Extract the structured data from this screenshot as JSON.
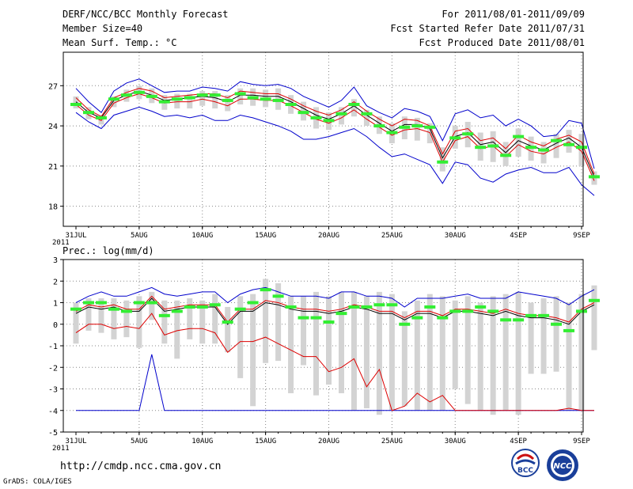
{
  "header": {
    "title": "DERF/NCC/BCC Monthly Forecast",
    "member_size": "Member Size=40",
    "variable": "Mean Surf. Temp.: °C",
    "period": "For 2011/08/01-2011/09/09",
    "fcst_started": "Fcst Started Refer Date 2011/07/31",
    "fcst_produced": "Fcst Produced Date 2011/08/01"
  },
  "footer": {
    "url": "http://cmdp.ncc.cma.gov.cn",
    "grads_credit": "GrADS: COLA/IGES",
    "logo_bcc": "BCC",
    "logo_ncc": "NCC"
  },
  "colors": {
    "spread_box": "#d3d3d3",
    "obs_bar": "#33ee33",
    "max_min_line": "#0000cc",
    "mean_line": "#000000",
    "lower_line": "#dd0000",
    "upper_red_line": "#dd0000"
  },
  "chart_data": [
    {
      "type": "line",
      "title": "Mean Surf. Temp.: °C",
      "x_tick_labels": [
        "31JUL",
        "5AUG",
        "10AUG",
        "15AUG",
        "20AUG",
        "25AUG",
        "30AUG",
        "4SEP",
        "9SEP"
      ],
      "x_tick_days": [
        0,
        5,
        10,
        15,
        20,
        25,
        30,
        35,
        40
      ],
      "year_label": "2011",
      "y_tick_labels": [
        "18",
        "21",
        "24",
        "27"
      ],
      "ylim": [
        16.5,
        29.5
      ],
      "grid": true,
      "series": [
        {
          "name": "max",
          "values": [
            26.8,
            25.8,
            25.0,
            26.6,
            27.2,
            27.5,
            27.0,
            26.5,
            26.6,
            26.6,
            26.9,
            26.8,
            26.6,
            27.3,
            27.1,
            27.0,
            27.1,
            26.8,
            26.2,
            25.8,
            25.4,
            25.9,
            26.9,
            25.5,
            25.0,
            24.6,
            25.3,
            25.1,
            24.7,
            22.9,
            24.9,
            25.2,
            24.6,
            24.8,
            24.0,
            24.5,
            24.0,
            23.2,
            23.3,
            24.4,
            24.2,
            20.8
          ]
        },
        {
          "name": "mean",
          "values": [
            25.8,
            25.0,
            24.6,
            25.9,
            26.3,
            26.6,
            26.3,
            25.9,
            26.0,
            26.1,
            26.2,
            26.1,
            25.8,
            26.3,
            26.3,
            26.2,
            26.2,
            25.8,
            25.3,
            24.8,
            24.5,
            24.9,
            25.5,
            24.8,
            24.2,
            23.6,
            24.1,
            24.1,
            23.8,
            21.6,
            23.2,
            23.5,
            22.6,
            22.8,
            22.0,
            22.9,
            22.5,
            22.2,
            22.7,
            23.1,
            22.4,
            20.2
          ]
        },
        {
          "name": "min",
          "values": [
            25.0,
            24.3,
            23.8,
            24.8,
            25.1,
            25.4,
            25.1,
            24.7,
            24.8,
            24.6,
            24.8,
            24.4,
            24.4,
            24.8,
            24.6,
            24.3,
            24.0,
            23.6,
            23.0,
            23.0,
            23.2,
            23.5,
            23.8,
            23.2,
            22.4,
            21.7,
            21.9,
            21.5,
            21.1,
            19.7,
            21.3,
            21.1,
            20.1,
            19.8,
            20.4,
            20.7,
            20.9,
            20.5,
            20.5,
            20.9,
            19.6,
            18.8
          ]
        },
        {
          "name": "upper",
          "values": [
            26.1,
            25.2,
            24.7,
            26.1,
            26.5,
            26.8,
            26.6,
            26.1,
            26.2,
            26.3,
            26.4,
            26.4,
            26.1,
            26.6,
            26.5,
            26.4,
            26.4,
            26.0,
            25.5,
            25.1,
            24.8,
            25.2,
            25.8,
            25.1,
            24.5,
            24.0,
            24.5,
            24.4,
            24.0,
            21.9,
            23.6,
            23.8,
            22.9,
            23.1,
            22.3,
            23.3,
            22.8,
            22.5,
            23.0,
            23.3,
            22.8,
            20.4
          ]
        },
        {
          "name": "lower",
          "values": [
            25.6,
            24.8,
            24.4,
            25.7,
            26.1,
            26.4,
            26.1,
            25.7,
            25.8,
            25.8,
            26.0,
            25.8,
            25.5,
            26.0,
            26.0,
            25.9,
            25.9,
            25.5,
            25.0,
            24.5,
            24.2,
            24.6,
            25.2,
            24.5,
            23.9,
            23.3,
            23.7,
            23.8,
            23.5,
            21.3,
            22.9,
            23.2,
            22.3,
            22.5,
            21.7,
            22.6,
            22.1,
            21.9,
            22.4,
            22.8,
            22.1,
            19.9
          ]
        },
        {
          "name": "box_top",
          "values": [
            26.2,
            25.4,
            24.8,
            26.2,
            26.7,
            27.0,
            26.8,
            26.3,
            26.4,
            26.4,
            26.6,
            26.6,
            26.3,
            26.8,
            26.8,
            26.7,
            26.8,
            26.3,
            25.8,
            25.4,
            25.0,
            25.4,
            26.0,
            25.2,
            24.7,
            24.2,
            24.7,
            24.6,
            24.2,
            22.4,
            24.0,
            24.3,
            23.5,
            23.6,
            22.8,
            23.8,
            23.2,
            22.8,
            23.4,
            23.7,
            23.4,
            20.6
          ]
        },
        {
          "name": "box_bottom",
          "values": [
            25.3,
            24.5,
            24.1,
            25.4,
            25.8,
            26.0,
            25.7,
            25.2,
            25.3,
            25.3,
            25.5,
            25.3,
            25.1,
            25.6,
            25.5,
            25.4,
            25.2,
            24.9,
            24.4,
            23.8,
            23.7,
            24.1,
            24.7,
            24.0,
            23.4,
            22.7,
            23.0,
            22.9,
            22.7,
            20.6,
            22.3,
            22.4,
            21.4,
            21.3,
            21.0,
            21.7,
            21.4,
            21.2,
            21.6,
            22.0,
            21.0,
            19.6
          ]
        },
        {
          "name": "observed",
          "values": [
            25.6,
            25.0,
            24.6,
            26.0,
            26.3,
            26.5,
            26.2,
            25.8,
            26.0,
            26.1,
            26.3,
            26.3,
            25.9,
            26.4,
            26.1,
            26.0,
            25.9,
            25.6,
            25.0,
            24.6,
            24.4,
            24.9,
            25.6,
            24.9,
            24.0,
            23.5,
            23.9,
            24.0,
            23.9,
            21.3,
            23.1,
            23.4,
            22.4,
            22.5,
            21.8,
            23.2,
            22.4,
            22.2,
            22.9,
            22.6,
            22.4,
            20.2
          ]
        }
      ]
    },
    {
      "type": "line",
      "title": "Prec.: log(mm/d)",
      "x_tick_labels": [
        "31JUL",
        "5AUG",
        "10AUG",
        "15AUG",
        "20AUG",
        "25AUG",
        "30AUG",
        "4SEP",
        "9SEP"
      ],
      "x_tick_days": [
        0,
        5,
        10,
        15,
        20,
        25,
        30,
        35,
        40
      ],
      "year_label": "2011",
      "y_tick_labels": [
        "-5",
        "-4",
        "-3",
        "-2",
        "-1",
        "0",
        "1",
        "2",
        "3"
      ],
      "ylim": [
        -5,
        3
      ],
      "grid": true,
      "series": [
        {
          "name": "max",
          "values": [
            1.0,
            1.3,
            1.5,
            1.3,
            1.3,
            1.5,
            1.7,
            1.4,
            1.3,
            1.4,
            1.5,
            1.5,
            1.0,
            1.4,
            1.6,
            1.7,
            1.5,
            1.3,
            1.3,
            1.3,
            1.2,
            1.5,
            1.5,
            1.3,
            1.3,
            1.2,
            0.8,
            1.2,
            1.2,
            1.2,
            1.3,
            1.4,
            1.2,
            1.2,
            1.2,
            1.5,
            1.4,
            1.3,
            1.2,
            0.9,
            1.3,
            1.6
          ]
        },
        {
          "name": "mean",
          "values": [
            0.5,
            0.8,
            0.7,
            0.8,
            0.6,
            0.6,
            1.2,
            0.6,
            0.7,
            0.8,
            0.8,
            0.8,
            0.0,
            0.6,
            0.6,
            1.0,
            0.9,
            0.7,
            0.6,
            0.6,
            0.5,
            0.6,
            0.8,
            0.7,
            0.5,
            0.5,
            0.2,
            0.5,
            0.5,
            0.3,
            0.6,
            0.6,
            0.5,
            0.4,
            0.6,
            0.4,
            0.3,
            0.3,
            0.2,
            0.0,
            0.6,
            0.9
          ]
        },
        {
          "name": "min",
          "values": [
            -4.0,
            -4.0,
            -4.0,
            -4.0,
            -4.0,
            -4.0,
            -1.4,
            -4.0,
            -4.0,
            -4.0,
            -4.0,
            -4.0,
            -4.0,
            -4.0,
            -4.0,
            -4.0,
            -4.0,
            -4.0,
            -4.0,
            -4.0,
            -4.0,
            -4.0,
            -4.0,
            -4.0,
            -4.0,
            -4.0,
            -4.0,
            -4.0,
            -4.0,
            -4.0,
            -4.0,
            -4.0,
            -4.0,
            -4.0,
            -4.0,
            -4.0,
            -4.0,
            -4.0,
            -4.0,
            -4.0,
            -4.0,
            -4.0
          ]
        },
        {
          "name": "upper",
          "values": [
            0.6,
            0.9,
            0.8,
            0.9,
            0.7,
            0.7,
            1.3,
            0.7,
            0.8,
            0.9,
            0.9,
            0.9,
            0.1,
            0.7,
            0.7,
            1.1,
            1.0,
            0.8,
            0.7,
            0.7,
            0.6,
            0.7,
            0.9,
            0.8,
            0.6,
            0.6,
            0.3,
            0.6,
            0.6,
            0.4,
            0.7,
            0.7,
            0.6,
            0.5,
            0.7,
            0.5,
            0.4,
            0.4,
            0.3,
            0.1,
            0.7,
            1.0
          ]
        },
        {
          "name": "lower",
          "values": [
            -0.4,
            0.0,
            0.0,
            -0.2,
            -0.1,
            -0.2,
            0.5,
            -0.5,
            -0.3,
            -0.2,
            -0.2,
            -0.4,
            -1.3,
            -0.8,
            -0.8,
            -0.6,
            -0.9,
            -1.2,
            -1.5,
            -1.5,
            -2.2,
            -2.0,
            -1.6,
            -2.9,
            -2.1,
            -4.0,
            -3.8,
            -3.2,
            -3.6,
            -3.3,
            -4.0,
            -4.0,
            -4.0,
            -4.0,
            -4.0,
            -4.0,
            -4.0,
            -4.0,
            -4.0,
            -3.9,
            -4.0,
            -4.0
          ]
        },
        {
          "name": "box_top",
          "values": [
            1.0,
            1.2,
            1.2,
            1.2,
            1.1,
            1.3,
            1.5,
            1.1,
            1.1,
            1.2,
            1.1,
            1.4,
            0.8,
            1.3,
            1.4,
            2.1,
            1.9,
            1.3,
            1.3,
            1.5,
            1.3,
            1.5,
            1.5,
            1.3,
            1.5,
            1.4,
            0.6,
            1.1,
            1.4,
            1.3,
            1.1,
            1.3,
            1.0,
            1.3,
            1.4,
            1.5,
            1.0,
            1.2,
            1.3,
            1.0,
            1.4,
            1.8
          ]
        },
        {
          "name": "box_bottom",
          "values": [
            -0.9,
            -0.3,
            -0.4,
            -0.7,
            -0.6,
            -1.1,
            0.2,
            -0.9,
            -1.6,
            -0.7,
            -0.9,
            -0.9,
            -1.3,
            -2.5,
            -3.8,
            -1.8,
            -1.7,
            -3.2,
            -1.9,
            -3.3,
            -2.8,
            -3.2,
            -4.0,
            -3.9,
            -4.2,
            -4.0,
            -3.8,
            -4.0,
            -4.0,
            -4.0,
            -3.0,
            -3.7,
            -4.0,
            -4.2,
            -4.0,
            -4.2,
            -2.3,
            -2.3,
            -2.2,
            -4.0,
            -4.0,
            -1.2
          ]
        },
        {
          "name": "observed",
          "values": [
            0.7,
            1.0,
            1.0,
            0.7,
            0.6,
            1.0,
            1.0,
            0.4,
            0.6,
            0.8,
            0.8,
            0.9,
            0.1,
            0.7,
            1.0,
            1.6,
            1.3,
            0.8,
            0.3,
            0.3,
            0.1,
            0.5,
            0.8,
            0.8,
            0.9,
            0.9,
            0.0,
            0.3,
            0.8,
            0.3,
            0.6,
            0.6,
            0.8,
            0.6,
            0.2,
            0.2,
            0.4,
            0.4,
            0.0,
            -0.3,
            0.6,
            1.1
          ]
        }
      ]
    }
  ]
}
